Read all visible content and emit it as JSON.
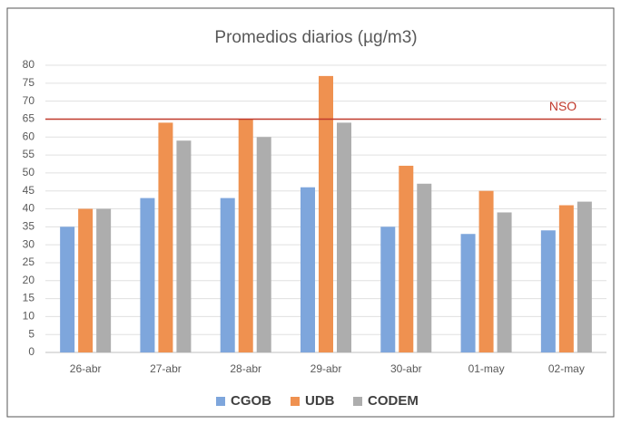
{
  "chart_data": {
    "type": "bar",
    "title": "Promedios diarios (µg/m3)",
    "categories": [
      "26-abr",
      "27-abr",
      "28-abr",
      "29-abr",
      "30-abr",
      "01-may",
      "02-may"
    ],
    "series": [
      {
        "name": "CGOB",
        "color": "#7ea6dc",
        "values": [
          35,
          43,
          43,
          46,
          35,
          33,
          34
        ]
      },
      {
        "name": "UDB",
        "color": "#ef9150",
        "values": [
          40,
          64,
          65,
          77,
          52,
          45,
          41
        ]
      },
      {
        "name": "CODEM",
        "color": "#adadad",
        "values": [
          40,
          59,
          60,
          64,
          47,
          39,
          42
        ]
      }
    ],
    "ylim": [
      0,
      80
    ],
    "yticks": [
      0,
      5,
      10,
      15,
      20,
      25,
      30,
      35,
      40,
      45,
      50,
      55,
      60,
      65,
      70,
      75,
      80
    ],
    "grid": true,
    "legend": "bottom",
    "reference_line": {
      "value": 65,
      "label": "NSO",
      "color": "#c0392b"
    }
  }
}
